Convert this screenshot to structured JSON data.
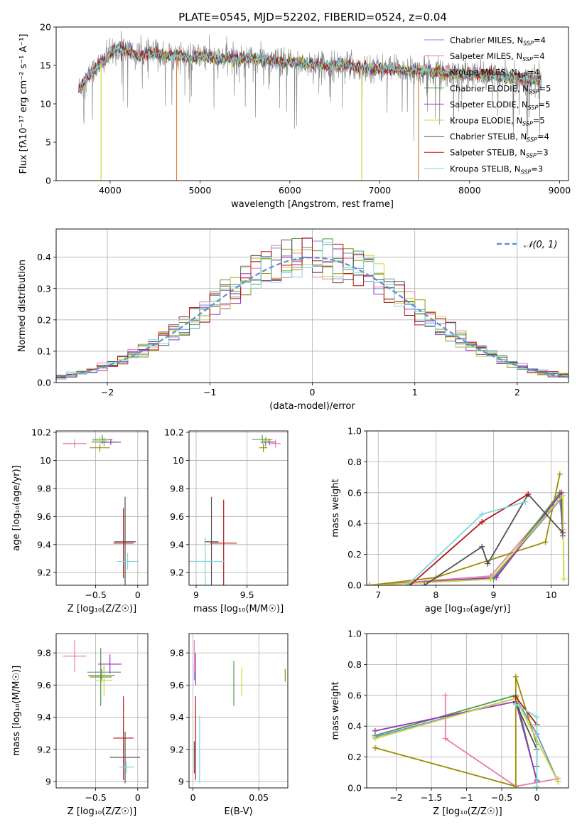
{
  "figure_title": "PLATE=0545, MJD=52202, FIBERID=0524, z=0.04",
  "series_colors": [
    "#6b8fd6",
    "#e87cb0",
    "#a08a00",
    "#4b9b4b",
    "#9932b8",
    "#c8d838",
    "#505050",
    "#b81414",
    "#7fd7de"
  ],
  "legend_labels": [
    "Chabrier MILES, N$_{SSP}$=4",
    "Salpeter MILES, N$_{SSP}$=4",
    "Kroupa MILES, N$_{SSP}$=4",
    "Chabrier ELODIE, N$_{SSP}$=5",
    "Salpeter ELODIE, N$_{SSP}$=5",
    "Kroupa ELODIE, N$_{SSP}$=5",
    "Chabrier STELIB, N$_{SSP}$=4",
    "Salpeter STELIB, N$_{SSP}$=3",
    "Kroupa STELIB, N$_{SSP}$=3"
  ],
  "legend_display": [
    "Chabrier MILES, NSSP=4",
    "Salpeter MILES, NSSP=4",
    "Kroupa MILES, NSSP=4",
    "Chabrier ELODIE, NSSP=5",
    "Salpeter ELODIE, NSSP=5",
    "Kroupa ELODIE, NSSP=5",
    "Chabrier STELIB, NSSP=4",
    "Salpeter STELIB, NSSP=3",
    "Kroupa STELIB, NSSP=3"
  ],
  "chart_data": [
    {
      "id": "spectrum",
      "type": "line",
      "xlabel": "wavelength [Angstrom, rest frame]",
      "ylabel": "Flux [fλ10⁻¹⁷ erg cm⁻² s⁻¹ A⁻¹]",
      "xlim": [
        3400,
        9100
      ],
      "ylim": [
        0,
        20
      ],
      "xticks": [
        4000,
        5000,
        6000,
        7000,
        8000,
        9000
      ],
      "yticks": [
        0,
        5,
        10,
        15,
        20
      ],
      "grid": false,
      "legend": "upper right",
      "x": [
        3650,
        3700,
        3750,
        3800,
        3850,
        3900,
        3950,
        4000,
        4050,
        4100,
        4200,
        4300,
        4400,
        4500,
        4600,
        4700,
        4800,
        4900,
        5000,
        5100,
        5200,
        5300,
        5400,
        5500,
        5600,
        5700,
        5800,
        5900,
        6000,
        6200,
        6400,
        6600,
        6800,
        7000,
        7200,
        7400,
        7600,
        7800,
        8000,
        8200,
        8400,
        8600,
        8800
      ],
      "model_flux": [
        12.0,
        12.5,
        13.5,
        14.2,
        14.8,
        15.3,
        15.8,
        16.5,
        17.0,
        17.3,
        17.0,
        16.2,
        16.5,
        16.6,
        16.3,
        16.4,
        16.2,
        15.9,
        16.3,
        16.1,
        15.8,
        16.0,
        15.9,
        16.0,
        15.9,
        15.7,
        15.6,
        15.4,
        15.4,
        15.2,
        15.0,
        15.1,
        14.7,
        14.6,
        14.4,
        14.3,
        14.2,
        14.0,
        13.8,
        13.7,
        13.5,
        13.3,
        13.0
      ]
    },
    {
      "id": "residuals",
      "type": "histogram",
      "xlabel": "(data-model)/error",
      "ylabel": "Normed distribution",
      "xlim": [
        -2.5,
        2.5
      ],
      "ylim": [
        0,
        0.49
      ],
      "xticks": [
        -2,
        -1,
        0,
        1,
        2
      ],
      "yticks": [
        0.0,
        0.1,
        0.2,
        0.3,
        0.4
      ],
      "grid": true,
      "legend": "upper right",
      "legend_label": "𝒩(0, 1)",
      "bin_width": 0.1,
      "bin_start": -2.5
    },
    {
      "id": "age_vs_Z",
      "type": "errorbar",
      "xlabel": "Z [log₁₀(Z/Z☉)]",
      "ylabel": "age  [log₁₀(age/yr)]",
      "xlim": [
        -0.97,
        0.12
      ],
      "ylim": [
        9.11,
        10.21
      ],
      "xticks": [
        -0.5,
        0.0
      ],
      "yticks": [
        9.2,
        9.4,
        9.6,
        9.8,
        10.0,
        10.2
      ],
      "grid": true,
      "points": [
        {
          "s": 0,
          "x": -0.4,
          "y": 10.13,
          "xerr": 0.15,
          "yerr": 0.03
        },
        {
          "s": 1,
          "x": -0.75,
          "y": 10.12,
          "xerr": 0.14,
          "yerr": 0.03
        },
        {
          "s": 2,
          "x": -0.45,
          "y": 10.09,
          "xerr": 0.12,
          "yerr": 0.03
        },
        {
          "s": 3,
          "x": -0.42,
          "y": 10.15,
          "xerr": 0.12,
          "yerr": 0.03
        },
        {
          "s": 4,
          "x": -0.32,
          "y": 10.13,
          "xerr": 0.12,
          "yerr": 0.02
        },
        {
          "s": 5,
          "x": -0.45,
          "y": 10.14,
          "xerr": 0.09,
          "yerr": 0.03
        },
        {
          "s": 6,
          "x": -0.15,
          "y": 9.42,
          "xerr": 0.13,
          "yerr": 0.32
        },
        {
          "s": 7,
          "x": -0.17,
          "y": 9.41,
          "xerr": 0.12,
          "yerr": 0.25
        },
        {
          "s": 8,
          "x": -0.12,
          "y": 9.28,
          "xerr": 0.13,
          "yerr": 0.06
        }
      ]
    },
    {
      "id": "age_vs_mass",
      "type": "errorbar",
      "xlabel": "mass [log₁₀(M/M☉)]",
      "ylabel": "",
      "xlim": [
        8.93,
        9.9
      ],
      "ylim": [
        9.11,
        10.21
      ],
      "xticks": [
        9.0,
        9.5
      ],
      "yticks": [
        9.2,
        9.4,
        9.6,
        9.8,
        10.0,
        10.2
      ],
      "grid": true,
      "points": [
        {
          "s": 0,
          "x": 9.68,
          "y": 10.13,
          "xerr": 0.05,
          "yerr": 0.03
        },
        {
          "s": 1,
          "x": 9.78,
          "y": 10.12,
          "xerr": 0.05,
          "yerr": 0.03
        },
        {
          "s": 2,
          "x": 9.66,
          "y": 10.09,
          "xerr": 0.04,
          "yerr": 0.03
        },
        {
          "s": 3,
          "x": 9.65,
          "y": 10.15,
          "xerr": 0.1,
          "yerr": 0.03
        },
        {
          "s": 4,
          "x": 9.72,
          "y": 10.13,
          "xerr": 0.06,
          "yerr": 0.02
        },
        {
          "s": 5,
          "x": 9.69,
          "y": 10.14,
          "xerr": 0.04,
          "yerr": 0.03
        },
        {
          "s": 6,
          "x": 9.15,
          "y": 9.42,
          "xerr": 0.07,
          "yerr": 0.32
        },
        {
          "s": 7,
          "x": 9.27,
          "y": 9.41,
          "xerr": 0.13,
          "yerr": 0.31
        },
        {
          "s": 8,
          "x": 9.09,
          "y": 9.28,
          "xerr": 0.19,
          "yerr": 0.17
        }
      ]
    },
    {
      "id": "mass_weight_vs_age",
      "type": "line",
      "xlabel": "age  [log₁₀(age/yr)]",
      "ylabel": "mass weight",
      "xlim": [
        6.8,
        10.3
      ],
      "ylim": [
        0,
        1.0
      ],
      "xticks": [
        7,
        8,
        9,
        10
      ],
      "yticks": [
        0.0,
        0.2,
        0.4,
        0.6,
        0.8,
        1.0
      ],
      "grid": true,
      "series": [
        {
          "s": 0,
          "x": [
            6.85,
            9.0,
            10.15,
            10.2
          ],
          "y": [
            0.0,
            0.05,
            0.55,
            0.4
          ]
        },
        {
          "s": 1,
          "x": [
            6.85,
            8.95,
            10.15,
            10.2
          ],
          "y": [
            0.0,
            0.06,
            0.58,
            0.36
          ]
        },
        {
          "s": 2,
          "x": [
            6.85,
            8.0,
            9.9,
            10.15
          ],
          "y": [
            0.0,
            0.05,
            0.28,
            0.72
          ]
        },
        {
          "s": 3,
          "x": [
            6.85,
            9.0,
            10.15,
            10.2
          ],
          "y": [
            0.0,
            0.04,
            0.6,
            0.34
          ]
        },
        {
          "s": 4,
          "x": [
            6.85,
            9.05,
            10.18,
            10.2
          ],
          "y": [
            0.0,
            0.05,
            0.6,
            0.32
          ]
        },
        {
          "s": 5,
          "x": [
            6.85,
            8.95,
            10.2,
            10.22
          ],
          "y": [
            0.0,
            0.04,
            0.58,
            0.04
          ]
        },
        {
          "s": 6,
          "x": [
            7.8,
            8.8,
            8.9,
            9.6,
            10.2
          ],
          "y": [
            0.0,
            0.25,
            0.14,
            0.59,
            0.34
          ]
        },
        {
          "s": 7,
          "x": [
            7.55,
            8.8,
            9.6
          ],
          "y": [
            0.0,
            0.41,
            0.59
          ]
        },
        {
          "s": 8,
          "x": [
            7.5,
            8.8,
            9.55
          ],
          "y": [
            0.0,
            0.46,
            0.54
          ]
        }
      ]
    },
    {
      "id": "mass_vs_Z",
      "type": "errorbar",
      "xlabel": "Z [log₁₀(Z/Z☉)]",
      "ylabel": "mass [log₁₀(M/M☉)]",
      "xlim": [
        -0.97,
        0.12
      ],
      "ylim": [
        8.96,
        9.92
      ],
      "xticks": [
        -0.5,
        0.0
      ],
      "yticks": [
        9.0,
        9.2,
        9.4,
        9.6,
        9.8
      ],
      "grid": true,
      "points": [
        {
          "s": 0,
          "x": -0.4,
          "y": 9.68,
          "xerr": 0.2,
          "yerr": 0.05
        },
        {
          "s": 1,
          "x": -0.75,
          "y": 9.78,
          "xerr": 0.14,
          "yerr": 0.1
        },
        {
          "s": 2,
          "x": -0.43,
          "y": 9.66,
          "xerr": 0.16,
          "yerr": 0.04
        },
        {
          "s": 3,
          "x": -0.44,
          "y": 9.65,
          "xerr": 0.13,
          "yerr": 0.18
        },
        {
          "s": 4,
          "x": -0.33,
          "y": 9.73,
          "xerr": 0.14,
          "yerr": 0.06
        },
        {
          "s": 5,
          "x": -0.4,
          "y": 9.63,
          "xerr": 0.1,
          "yerr": 0.1
        },
        {
          "s": 6,
          "x": -0.15,
          "y": 9.15,
          "xerr": 0.18,
          "yerr": 0.16
        },
        {
          "s": 7,
          "x": -0.17,
          "y": 9.27,
          "xerr": 0.12,
          "yerr": 0.26
        },
        {
          "s": 8,
          "x": -0.13,
          "y": 9.09,
          "xerr": 0.09,
          "yerr": 0.04
        }
      ]
    },
    {
      "id": "mass_vs_ebv",
      "type": "errorbar",
      "xlabel": "E(B-V)",
      "ylabel": "",
      "xlim": [
        -0.003,
        0.072
      ],
      "ylim": [
        8.96,
        9.92
      ],
      "xticks": [
        0.0,
        0.05
      ],
      "yticks": [
        9.0,
        9.2,
        9.4,
        9.6,
        9.8
      ],
      "grid": true,
      "points": [
        {
          "s": 0,
          "x": 0.001,
          "y": 9.68,
          "xerr": 0,
          "yerr": 0.05
        },
        {
          "s": 1,
          "x": 0.001,
          "y": 9.78,
          "xerr": 0,
          "yerr": 0.1
        },
        {
          "s": 2,
          "x": 0.07,
          "y": 9.66,
          "xerr": 0,
          "yerr": 0.04
        },
        {
          "s": 3,
          "x": 0.031,
          "y": 9.61,
          "xerr": 0,
          "yerr": 0.14
        },
        {
          "s": 4,
          "x": 0.002,
          "y": 9.7,
          "xerr": 0,
          "yerr": 0.1
        },
        {
          "s": 5,
          "x": 0.037,
          "y": 9.62,
          "xerr": 0,
          "yerr": 0.09
        },
        {
          "s": 6,
          "x": 0.001,
          "y": 9.15,
          "xerr": 0,
          "yerr": 0.1
        },
        {
          "s": 7,
          "x": 0.002,
          "y": 9.27,
          "xerr": 0,
          "yerr": 0.26
        },
        {
          "s": 8,
          "x": 0.005,
          "y": 9.2,
          "xerr": 0,
          "yerr": 0.21
        }
      ]
    },
    {
      "id": "mass_weight_vs_Z",
      "type": "line",
      "xlabel": "Z [log₁₀(Z/Z☉)]",
      "ylabel": "mass weight",
      "xlim": [
        -2.42,
        0.45
      ],
      "ylim": [
        0,
        1.0
      ],
      "xticks": [
        -2.0,
        -1.5,
        -1.0,
        -0.5,
        0.0
      ],
      "yticks": [
        0.0,
        0.2,
        0.4,
        0.6,
        0.8,
        1.0
      ],
      "grid": true,
      "series": [
        {
          "s": 0,
          "x": [
            -2.3,
            -0.3,
            0.0,
            0.3
          ],
          "y": [
            0.33,
            0.58,
            0.35,
            0.04
          ]
        },
        {
          "s": 1,
          "x": [
            -1.3,
            -1.3,
            -0.3,
            0.3
          ],
          "y": [
            0.6,
            0.32,
            0.01,
            0.06
          ]
        },
        {
          "s": 2,
          "x": [
            -2.3,
            -0.3,
            -0.3,
            0.0
          ],
          "y": [
            0.26,
            0.01,
            0.72,
            0.28
          ]
        },
        {
          "s": 3,
          "x": [
            -2.3,
            -0.3,
            0.0
          ],
          "y": [
            0.34,
            0.6,
            0.04
          ]
        },
        {
          "s": 4,
          "x": [
            -2.3,
            -0.3,
            0.0
          ],
          "y": [
            0.37,
            0.56,
            0.05
          ]
        },
        {
          "s": 5,
          "x": [
            -2.3,
            -0.3,
            0.3
          ],
          "y": [
            0.32,
            0.58,
            0.04
          ]
        },
        {
          "s": 6,
          "x": [
            -0.3,
            0.0,
            0.0
          ],
          "y": [
            0.55,
            0.25,
            0.14
          ]
        },
        {
          "s": 7,
          "x": [
            -0.3,
            0.0
          ],
          "y": [
            0.59,
            0.41
          ]
        },
        {
          "s": 8,
          "x": [
            -0.3,
            0.0,
            0.0
          ],
          "y": [
            0.54,
            0.46,
            0.01
          ]
        }
      ]
    }
  ]
}
